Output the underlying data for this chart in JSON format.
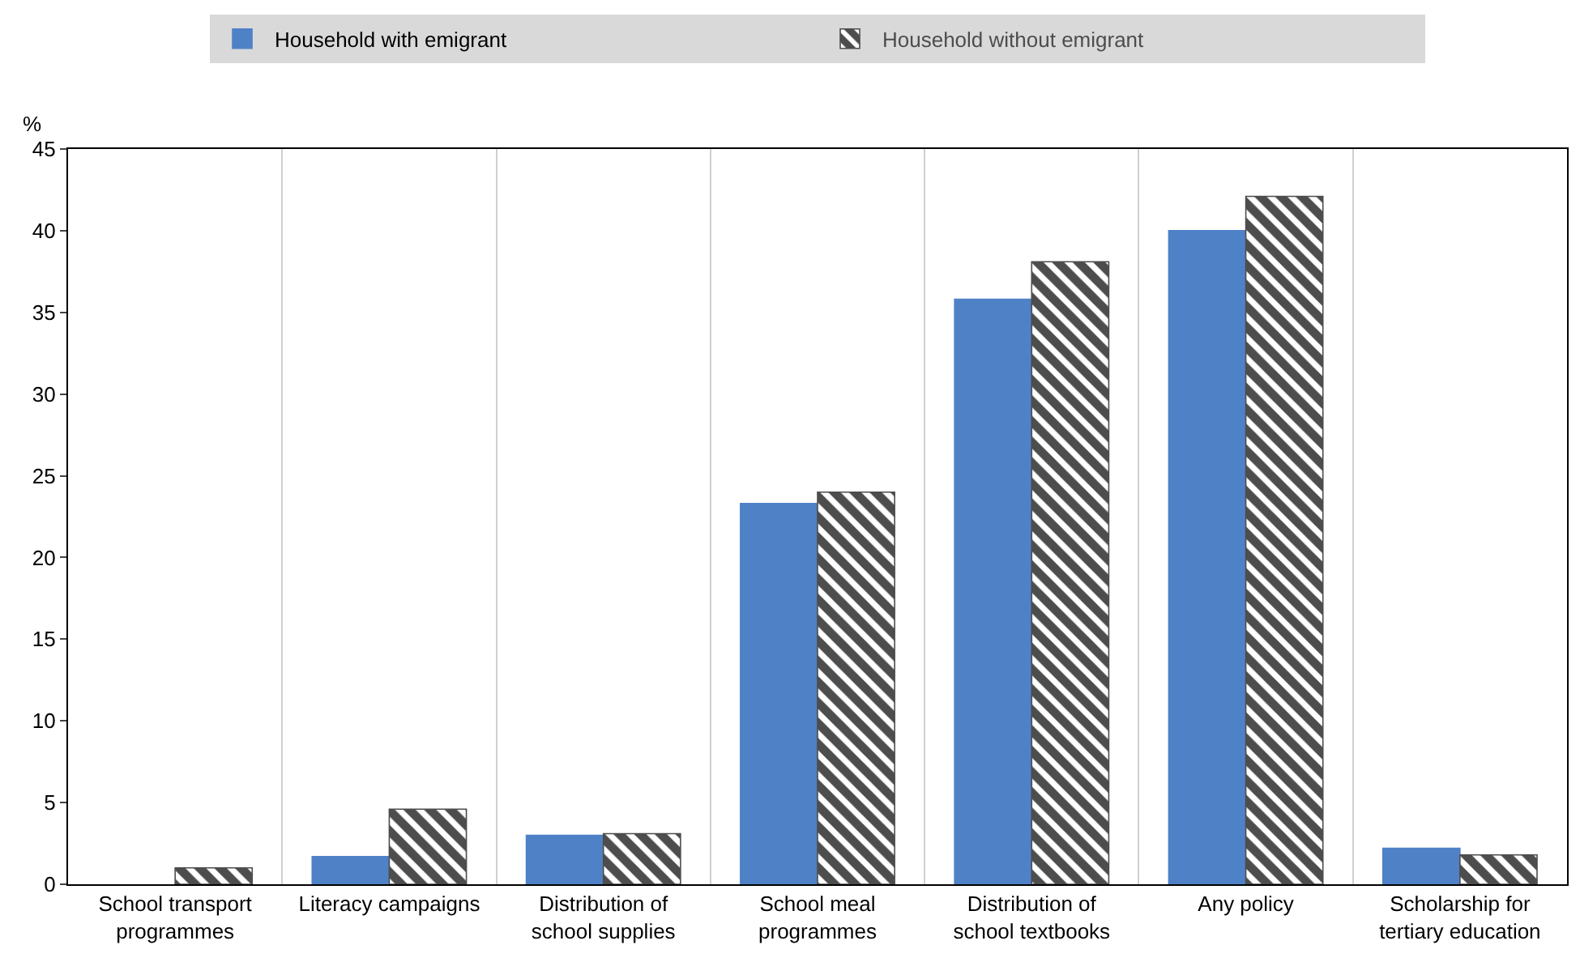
{
  "chart_data": {
    "type": "bar",
    "ylabel": "%",
    "categories": [
      "School transport programmes",
      "Literacy campaigns",
      "Distribution of school supplies",
      "School meal programmes",
      "Distribution of school textbooks",
      "Any policy",
      "Scholarship for tertiary education"
    ],
    "series": [
      {
        "name": "Household with emigrant",
        "color": "#4f81c7",
        "values": [
          null,
          1.7,
          3.0,
          23.3,
          35.8,
          40.0,
          2.2
        ]
      },
      {
        "name": "Household without emigrant",
        "color": "#4d4d4d",
        "values": [
          1.0,
          4.6,
          3.1,
          24.0,
          38.1,
          42.1,
          1.8
        ]
      }
    ],
    "ylim": [
      0,
      45
    ],
    "yticks": [
      0,
      5,
      10,
      15,
      20,
      25,
      30,
      35,
      40,
      45
    ],
    "grid": "x",
    "legend": "top"
  }
}
